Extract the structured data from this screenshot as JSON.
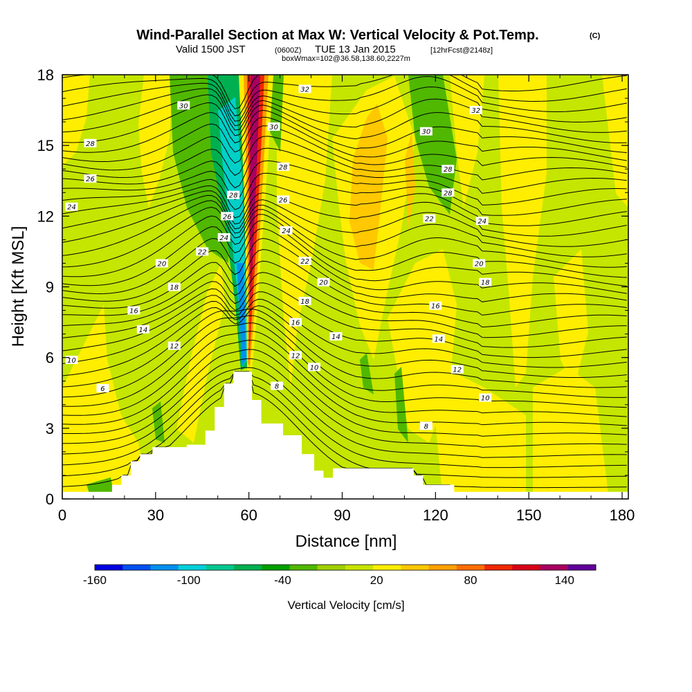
{
  "title": {
    "main": "Wind-Parallel Section at Max W: Vertical Velocity & Pot.Temp.",
    "copyright": "(C)",
    "line2_prefix": "Valid 1500 JST",
    "line2_zulu": "(0600Z)",
    "line2_date": "TUE 13 Jan 2015",
    "line2_fcst": "[12hrFcst@2148z]",
    "line3": "boxWmax=102@36.58,138.60,2227m"
  },
  "chart_data": {
    "type": "heatmap",
    "xlabel": "Distance [nm]",
    "ylabel": "Height [Kft MSL]",
    "xlim": [
      0,
      182
    ],
    "ylim": [
      0,
      18
    ],
    "x_ticks": [
      0,
      30,
      60,
      90,
      120,
      150,
      180
    ],
    "x_tick_labels": [
      "0",
      "30",
      "60",
      "90",
      "120",
      "150",
      "180"
    ],
    "y_ticks": [
      0,
      3,
      6,
      9,
      12,
      15,
      18
    ],
    "y_tick_labels": [
      "0",
      "3",
      "6",
      "9",
      "12",
      "15",
      "18"
    ],
    "colorbar": {
      "title": "Vertical Velocity [cm/s]",
      "range": [
        -160,
        160
      ],
      "tick_labels": [
        "-160",
        "-100",
        "-40",
        "20",
        "80",
        "140"
      ],
      "tick_values": [
        -160,
        -100,
        -40,
        20,
        80,
        140
      ],
      "colors": [
        "#0000e0",
        "#0050f0",
        "#0090f0",
        "#00d0d8",
        "#00c890",
        "#00b050",
        "#00a000",
        "#50b800",
        "#a0d000",
        "#c8e400",
        "#ffee00",
        "#ffc800",
        "#ffa000",
        "#ff6e00",
        "#f02800",
        "#d80018",
        "#a80060",
        "#60009a"
      ]
    },
    "terrain_profile": [
      [
        0,
        0.3
      ],
      [
        16,
        0.3
      ],
      [
        16,
        0.6
      ],
      [
        19,
        0.6
      ],
      [
        19,
        1.0
      ],
      [
        22,
        1.0
      ],
      [
        22,
        1.6
      ],
      [
        25,
        1.6
      ],
      [
        25,
        1.9
      ],
      [
        29,
        1.9
      ],
      [
        29,
        2.2
      ],
      [
        40,
        2.2
      ],
      [
        40,
        2.3
      ],
      [
        46,
        2.3
      ],
      [
        46,
        2.9
      ],
      [
        49,
        2.9
      ],
      [
        49,
        3.9
      ],
      [
        52,
        3.9
      ],
      [
        52,
        4.9
      ],
      [
        55,
        4.9
      ],
      [
        55,
        5.4
      ],
      [
        61,
        5.4
      ],
      [
        61,
        4.2
      ],
      [
        64,
        4.2
      ],
      [
        64,
        3.2
      ],
      [
        71,
        3.2
      ],
      [
        71,
        2.7
      ],
      [
        77,
        2.7
      ],
      [
        77,
        1.9
      ],
      [
        81,
        1.9
      ],
      [
        81,
        1.2
      ],
      [
        84,
        1.2
      ],
      [
        84,
        0.9
      ],
      [
        87,
        0.9
      ],
      [
        87,
        1.3
      ],
      [
        113,
        1.3
      ],
      [
        113,
        1.0
      ],
      [
        116,
        1.0
      ],
      [
        116,
        0.6
      ],
      [
        126,
        0.6
      ],
      [
        126,
        0.3
      ],
      [
        182,
        0.3
      ]
    ],
    "theta_contour_labels": [
      {
        "text": "32",
        "x": 78,
        "y": 17.4
      },
      {
        "text": "30",
        "x": 39,
        "y": 16.7
      },
      {
        "text": "30",
        "x": 68,
        "y": 15.8
      },
      {
        "text": "32",
        "x": 133,
        "y": 16.5
      },
      {
        "text": "30",
        "x": 117,
        "y": 15.6
      },
      {
        "text": "28",
        "x": 9,
        "y": 15.1
      },
      {
        "text": "28",
        "x": 71,
        "y": 14.1
      },
      {
        "text": "28",
        "x": 124,
        "y": 14.0
      },
      {
        "text": "26",
        "x": 9,
        "y": 13.6
      },
      {
        "text": "28",
        "x": 55,
        "y": 12.9
      },
      {
        "text": "26",
        "x": 71,
        "y": 12.7
      },
      {
        "text": "28",
        "x": 124,
        "y": 13.0
      },
      {
        "text": "24",
        "x": 3,
        "y": 12.4
      },
      {
        "text": "26",
        "x": 53,
        "y": 12.0
      },
      {
        "text": "22",
        "x": 118,
        "y": 11.9
      },
      {
        "text": "24",
        "x": 135,
        "y": 11.8
      },
      {
        "text": "24",
        "x": 52,
        "y": 11.1
      },
      {
        "text": "24",
        "x": 72,
        "y": 11.4
      },
      {
        "text": "22",
        "x": 45,
        "y": 10.5
      },
      {
        "text": "22",
        "x": 78,
        "y": 10.1
      },
      {
        "text": "20",
        "x": 32,
        "y": 10.0
      },
      {
        "text": "20",
        "x": 134,
        "y": 10.0
      },
      {
        "text": "20",
        "x": 84,
        "y": 9.2
      },
      {
        "text": "18",
        "x": 36,
        "y": 9.0
      },
      {
        "text": "18",
        "x": 136,
        "y": 9.2
      },
      {
        "text": "18",
        "x": 78,
        "y": 8.4
      },
      {
        "text": "16",
        "x": 23,
        "y": 8.0
      },
      {
        "text": "16",
        "x": 120,
        "y": 8.2
      },
      {
        "text": "16",
        "x": 75,
        "y": 7.5
      },
      {
        "text": "14",
        "x": 26,
        "y": 7.2
      },
      {
        "text": "14",
        "x": 88,
        "y": 6.9
      },
      {
        "text": "14",
        "x": 121,
        "y": 6.8
      },
      {
        "text": "12",
        "x": 36,
        "y": 6.5
      },
      {
        "text": "12",
        "x": 75,
        "y": 6.1
      },
      {
        "text": "10",
        "x": 3,
        "y": 5.9
      },
      {
        "text": "10",
        "x": 81,
        "y": 5.6
      },
      {
        "text": "12",
        "x": 127,
        "y": 5.5
      },
      {
        "text": "8",
        "x": 69,
        "y": 4.8
      },
      {
        "text": "6",
        "x": 13,
        "y": 4.7
      },
      {
        "text": "10",
        "x": 136,
        "y": 4.3
      },
      {
        "text": "8",
        "x": 117,
        "y": 3.1
      }
    ]
  }
}
